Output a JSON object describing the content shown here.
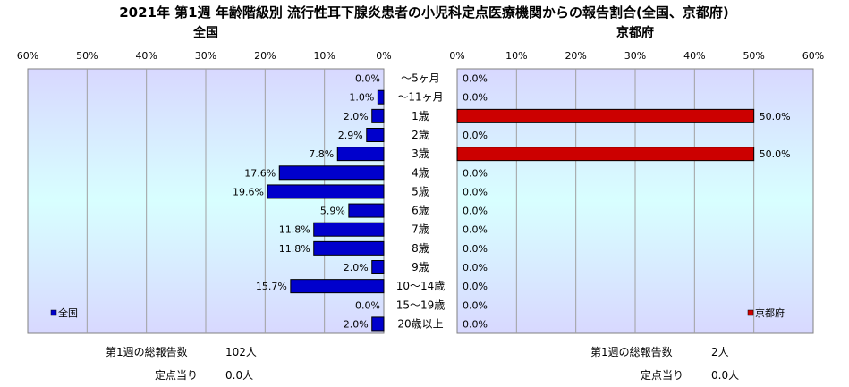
{
  "title": "2021年 第1週 年齢階級別 流行性耳下腺炎患者の小児科定点医療機関からの報告割合(全国、京都府)",
  "chart_data": [
    {
      "type": "bar",
      "orientation": "horizontal",
      "direction": "right-to-left",
      "subtitle": "全国",
      "categories": [
        "～5ヶ月",
        "～11ヶ月",
        "1歳",
        "2歳",
        "3歳",
        "4歳",
        "5歳",
        "6歳",
        "7歳",
        "8歳",
        "9歳",
        "10～14歳",
        "15～19歳",
        "20歳以上"
      ],
      "series": [
        {
          "name": "全国",
          "values": [
            0.0,
            1.0,
            2.0,
            2.9,
            7.8,
            17.6,
            19.6,
            5.9,
            11.8,
            11.8,
            2.0,
            15.7,
            0.0,
            2.0
          ],
          "color": "#0000cc"
        }
      ],
      "value_labels": [
        "0.0%",
        "1.0%",
        "2.0%",
        "2.9%",
        "7.8%",
        "17.6%",
        "19.6%",
        "5.9%",
        "11.8%",
        "11.8%",
        "2.0%",
        "15.7%",
        "0.0%",
        "2.0%"
      ],
      "xlim": [
        0,
        60
      ],
      "ticks": [
        "60%",
        "50%",
        "40%",
        "30%",
        "20%",
        "10%",
        "0%"
      ],
      "grid": true,
      "legend_position": "bottom-left",
      "plot_background": "gradient lavender-cyan-lavender"
    },
    {
      "type": "bar",
      "orientation": "horizontal",
      "direction": "left-to-right",
      "subtitle": "京都府",
      "categories": [
        "～5ヶ月",
        "～11ヶ月",
        "1歳",
        "2歳",
        "3歳",
        "4歳",
        "5歳",
        "6歳",
        "7歳",
        "8歳",
        "9歳",
        "10～14歳",
        "15～19歳",
        "20歳以上"
      ],
      "series": [
        {
          "name": "京都府",
          "values": [
            0.0,
            0.0,
            50.0,
            0.0,
            50.0,
            0.0,
            0.0,
            0.0,
            0.0,
            0.0,
            0.0,
            0.0,
            0.0,
            0.0
          ],
          "color": "#cc0000"
        }
      ],
      "value_labels": [
        "0.0%",
        "0.0%",
        "50.0%",
        "0.0%",
        "50.0%",
        "0.0%",
        "0.0%",
        "0.0%",
        "0.0%",
        "0.0%",
        "0.0%",
        "0.0%",
        "0.0%",
        "0.0%"
      ],
      "xlim": [
        0,
        60
      ],
      "ticks": [
        "0%",
        "10%",
        "20%",
        "30%",
        "40%",
        "50%",
        "60%"
      ],
      "grid": true,
      "legend_position": "bottom-right",
      "plot_background": "gradient lavender-cyan-lavender"
    }
  ],
  "footer": {
    "left": {
      "total_label": "第1週の総報告数",
      "total_value": "102人",
      "per_label": "定点当り",
      "per_value": "0.0人"
    },
    "right": {
      "total_label": "第1週の総報告数",
      "total_value": "2人",
      "per_label": "定点当り",
      "per_value": "0.0人"
    }
  },
  "colors": {
    "national_bar": "#0000cc",
    "kyoto_bar": "#cc0000",
    "grid": "#a0a0a0"
  }
}
